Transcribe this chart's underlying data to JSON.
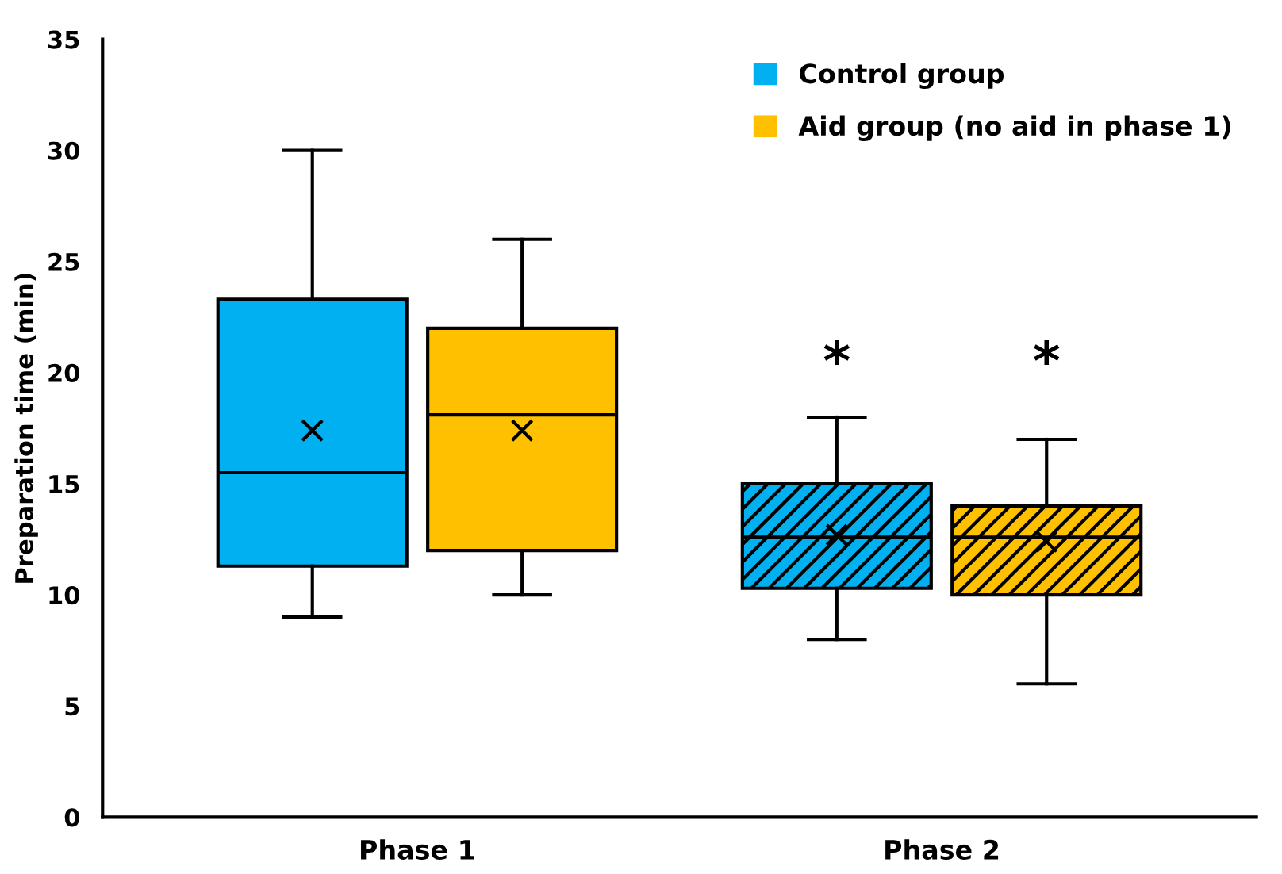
{
  "chart_data": {
    "type": "box",
    "ylabel": "Preparation time (min)",
    "categories": [
      "Phase 1",
      "Phase 2"
    ],
    "ylim": [
      0,
      35
    ],
    "yticks": [
      0,
      5,
      10,
      15,
      20,
      25,
      30,
      35
    ],
    "grid": false,
    "legend": "top right",
    "annotations": [
      "*",
      "*"
    ],
    "series": [
      {
        "name": "Control group",
        "color": "#00b0f0",
        "boxes": [
          {
            "low": 9,
            "q1": 11.3,
            "median": 15.5,
            "q3": 23.3,
            "high": 30,
            "mean": 17.4
          },
          {
            "low": 8,
            "q1": 10.3,
            "median": 12.6,
            "q3": 15,
            "high": 18,
            "mean": 12.7
          }
        ]
      },
      {
        "name": "Aid group (no aid in phase 1)",
        "color": "#ffc000",
        "boxes": [
          {
            "low": 10,
            "q1": 12,
            "median": 18.1,
            "q3": 22,
            "high": 26,
            "mean": 17.4
          },
          {
            "low": 6,
            "q1": 10,
            "median": 12.6,
            "q3": 14,
            "high": 17,
            "mean": 12.4
          }
        ]
      }
    ]
  }
}
